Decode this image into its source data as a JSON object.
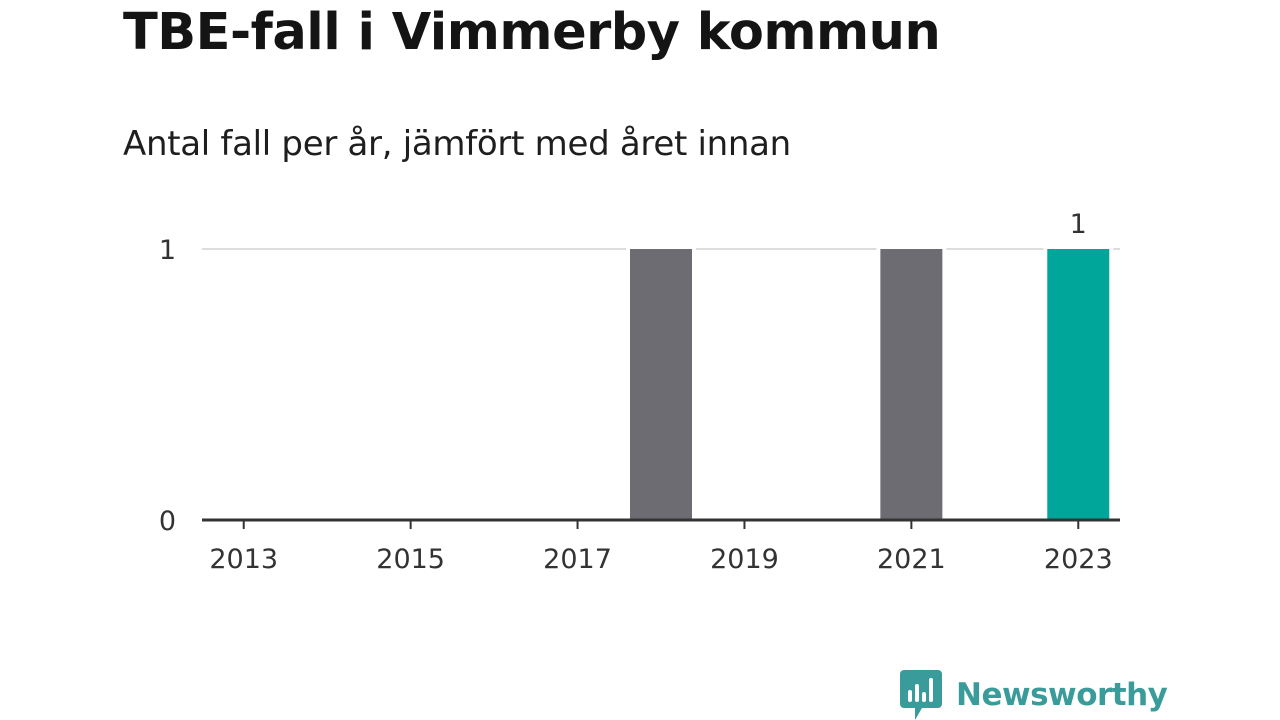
{
  "header": {
    "title": "TBE-fall i Vimmerby kommun",
    "subtitle": "Antal fall per år, jämfört med året innan"
  },
  "chart_data": {
    "type": "bar",
    "categories": [
      "2013",
      "2014",
      "2015",
      "2016",
      "2017",
      "2018",
      "2019",
      "2020",
      "2021",
      "2022",
      "2023"
    ],
    "values": [
      0,
      0,
      0,
      0,
      0,
      1,
      0,
      0,
      1,
      0,
      1
    ],
    "x_tick_labels": [
      "2013",
      "2015",
      "2017",
      "2019",
      "2021",
      "2023"
    ],
    "y_ticks": [
      0,
      1
    ],
    "y_tick_labels": [
      "0",
      "1"
    ],
    "ylim": [
      0,
      1
    ],
    "grid": true,
    "highlight_category": "2023",
    "data_labels": [
      {
        "category": "2023",
        "text": "1"
      }
    ],
    "colors": {
      "bar": "#6d6c72",
      "highlight": "#00a699",
      "gridline": "#dddddd",
      "axis": "#333333"
    }
  },
  "footer": {
    "brand_name": "Newsworthy",
    "brand_icon": "newsworthy-logo-icon",
    "brand_color": "#3a9c9a"
  }
}
